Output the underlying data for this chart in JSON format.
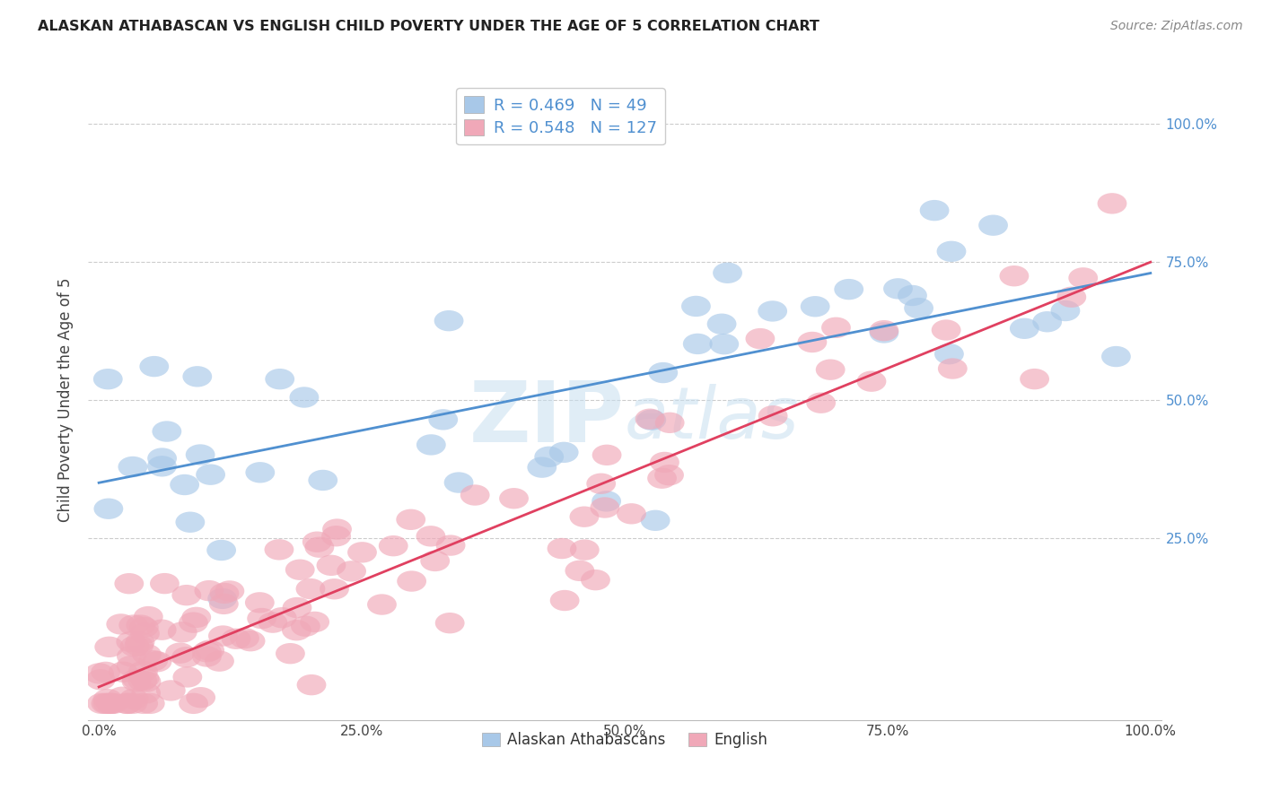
{
  "title": "ALASKAN ATHABASCAN VS ENGLISH CHILD POVERTY UNDER THE AGE OF 5 CORRELATION CHART",
  "source": "Source: ZipAtlas.com",
  "ylabel": "Child Poverty Under the Age of 5",
  "blue_color": "#a8c8e8",
  "pink_color": "#f0a8b8",
  "blue_line_color": "#5090d0",
  "pink_line_color": "#e04060",
  "legend_blue_label": "R = 0.469   N = 49",
  "legend_pink_label": "R = 0.548   N = 127",
  "legend_blue_series": "Alaskan Athabascans",
  "legend_pink_series": "English",
  "blue_R": 0.469,
  "blue_N": 49,
  "pink_R": 0.548,
  "pink_N": 127,
  "blue_intercept": 0.35,
  "blue_slope": 0.38,
  "pink_intercept": -0.02,
  "pink_slope": 0.77
}
